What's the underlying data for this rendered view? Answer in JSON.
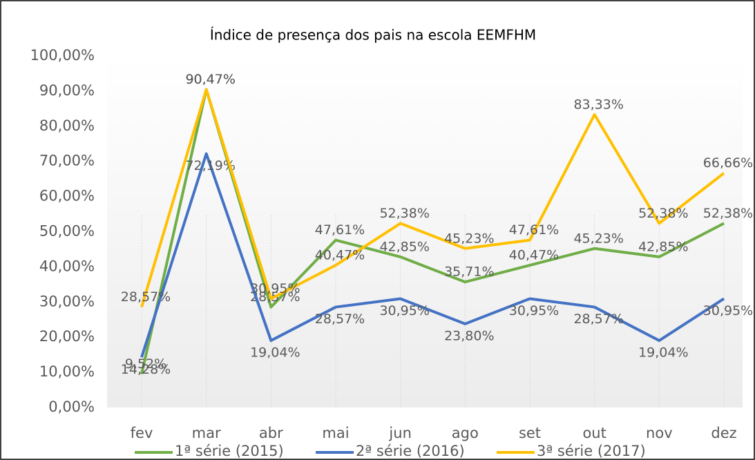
{
  "chart_data": {
    "type": "line",
    "title": "Índice de presença  dos pais na escola EEMFHM",
    "categories": [
      "fev",
      "mar",
      "abr",
      "mai",
      "jun",
      "ago",
      "set",
      "out",
      "nov",
      "dez"
    ],
    "series": [
      {
        "name": "1ª série (2015)",
        "color": "#70ad47",
        "values": [
          9.52,
          90.47,
          28.57,
          47.61,
          42.85,
          35.71,
          40.47,
          45.23,
          42.85,
          52.38
        ],
        "value_labels": [
          "9,52%",
          "90,47%",
          "28,57%",
          "47,61%",
          "42,85%",
          "35,71%",
          "40,47%",
          "45,23%",
          "42,85%",
          "52,38%"
        ]
      },
      {
        "name": "2ª série (2016)",
        "color": "#4472c4",
        "values": [
          14.28,
          72.19,
          19.04,
          28.57,
          30.95,
          23.8,
          30.95,
          28.57,
          19.04,
          30.95
        ],
        "value_labels": [
          "14,28%",
          "72,19%",
          "19,04%",
          "28,57%",
          "30,95%",
          "23,80%",
          "30,95%",
          "28,57%",
          "19,04%",
          "30,95%"
        ]
      },
      {
        "name": "3ª série (2017)",
        "color": "#ffc000",
        "values": [
          28.57,
          90.47,
          30.95,
          40.47,
          52.38,
          45.23,
          47.61,
          83.33,
          52.38,
          66.66
        ],
        "value_labels": [
          "28,57%",
          "90,47%",
          "30,95%",
          "40,47%",
          "52,38%",
          "45,23%",
          "47,61%",
          "83,33%",
          "52,38%",
          "66,66%"
        ]
      }
    ],
    "ylim": [
      0,
      100
    ],
    "yticks": [
      {
        "value": 0,
        "label": "0,00%"
      },
      {
        "value": 10,
        "label": "10,00%"
      },
      {
        "value": 20,
        "label": "20,00%"
      },
      {
        "value": 30,
        "label": "30,00%"
      },
      {
        "value": 40,
        "label": "40,00%"
      },
      {
        "value": 50,
        "label": "50,00%"
      },
      {
        "value": 60,
        "label": "60,00%"
      },
      {
        "value": 70,
        "label": "70,00%"
      },
      {
        "value": 80,
        "label": "80,00%"
      },
      {
        "value": 90,
        "label": "90,00%"
      },
      {
        "value": 100,
        "label": "100,00%"
      }
    ]
  }
}
